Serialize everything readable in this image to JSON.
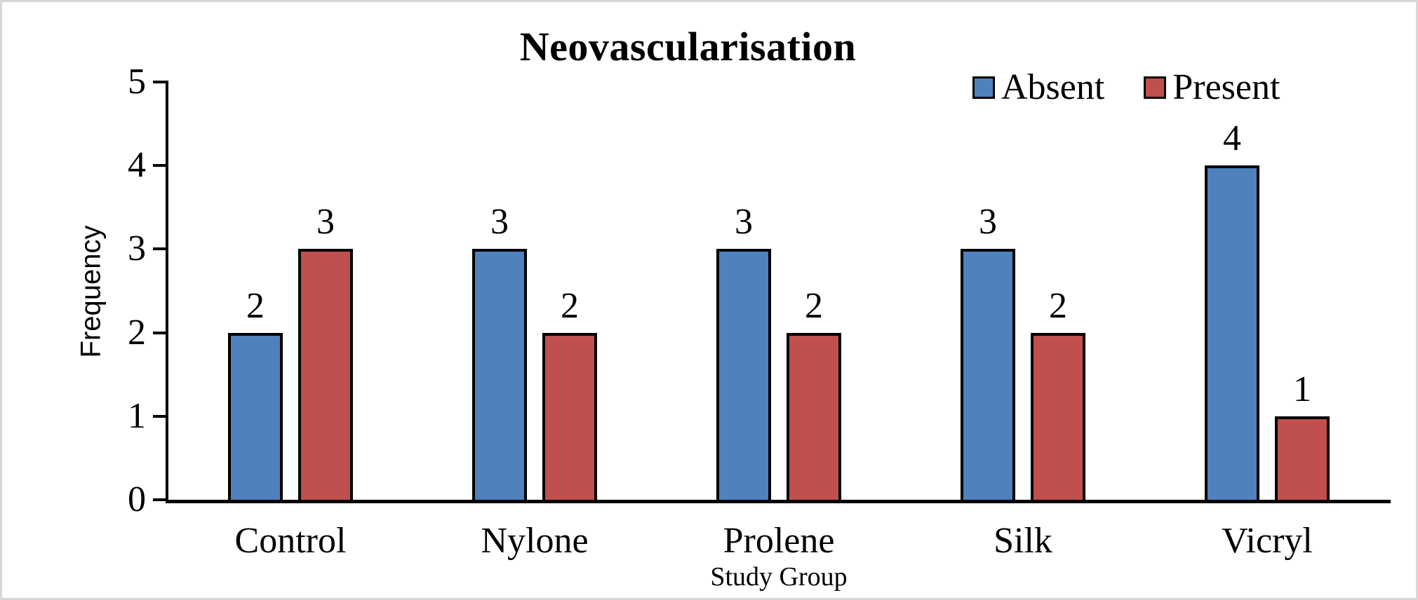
{
  "chart_data": {
    "type": "bar",
    "title": "Neovascularisation",
    "xlabel": "Study Group",
    "ylabel": "Frequency",
    "categories": [
      "Control",
      "Nylone",
      "Prolene",
      "Silk",
      "Vicryl"
    ],
    "series": [
      {
        "name": "Absent",
        "color": "#4F81BD",
        "values": [
          2,
          3,
          3,
          3,
          4
        ]
      },
      {
        "name": "Present",
        "color": "#C0504D",
        "values": [
          3,
          2,
          2,
          2,
          1
        ]
      }
    ],
    "ylim": [
      0,
      5
    ],
    "yticks": [
      0,
      1,
      2,
      3,
      4,
      5
    ],
    "grid": false,
    "bar_labels": true,
    "legend_position": "top-right",
    "bar_border_color": "#000000",
    "axis_color": "#000000"
  }
}
